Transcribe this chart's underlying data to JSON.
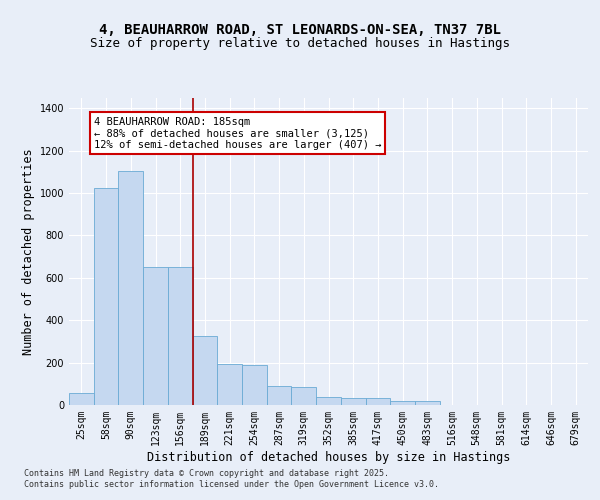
{
  "title1": "4, BEAUHARROW ROAD, ST LEONARDS-ON-SEA, TN37 7BL",
  "title2": "Size of property relative to detached houses in Hastings",
  "xlabel": "Distribution of detached houses by size in Hastings",
  "ylabel": "Number of detached properties",
  "categories": [
    "25sqm",
    "58sqm",
    "90sqm",
    "123sqm",
    "156sqm",
    "189sqm",
    "221sqm",
    "254sqm",
    "287sqm",
    "319sqm",
    "352sqm",
    "385sqm",
    "417sqm",
    "450sqm",
    "483sqm",
    "516sqm",
    "548sqm",
    "581sqm",
    "614sqm",
    "646sqm",
    "679sqm"
  ],
  "values": [
    55,
    1025,
    1105,
    650,
    650,
    325,
    195,
    190,
    90,
    85,
    40,
    35,
    35,
    20,
    20,
    0,
    0,
    0,
    0,
    0,
    0
  ],
  "bar_color": "#c5d8f0",
  "bar_edge_color": "#6aaad4",
  "vline_x": 4.5,
  "vline_color": "#aa0000",
  "annotation_text": "4 BEAUHARROW ROAD: 185sqm\n← 88% of detached houses are smaller (3,125)\n12% of semi-detached houses are larger (407) →",
  "annotation_box_color": "#cc0000",
  "bg_color": "#e8eef8",
  "plot_bg_color": "#e8eef8",
  "ylim": [
    0,
    1450
  ],
  "yticks": [
    0,
    200,
    400,
    600,
    800,
    1000,
    1200,
    1400
  ],
  "footer1": "Contains HM Land Registry data © Crown copyright and database right 2025.",
  "footer2": "Contains public sector information licensed under the Open Government Licence v3.0.",
  "title_fontsize": 10,
  "subtitle_fontsize": 9,
  "tick_fontsize": 7,
  "label_fontsize": 8.5,
  "annot_fontsize": 7.5
}
